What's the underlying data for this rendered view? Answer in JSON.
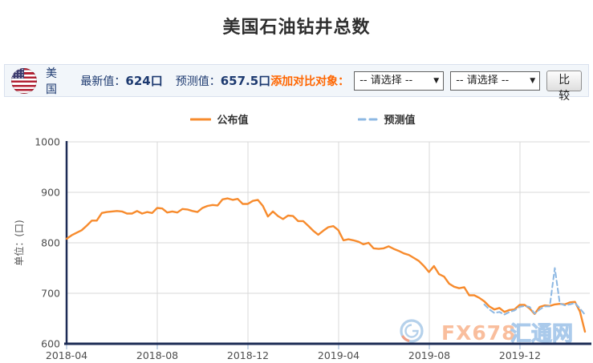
{
  "page": {
    "title": "美国石油钻井总数"
  },
  "toolbar": {
    "flag_icon": "us-flag",
    "country": "美国",
    "latest_label": "最新值：",
    "latest_value": "624口",
    "forecast_label": "预测值：",
    "forecast_value": "657.5口",
    "compare_label": "添加对比对象：",
    "select1_value": "-- 请选择 --",
    "select2_value": "-- 请选择 --",
    "compare_button": "比较"
  },
  "legend": [
    {
      "label": "公布值",
      "color": "#f78b2d",
      "style": "solid"
    },
    {
      "label": "预测值",
      "color": "#8db8e3",
      "style": "dashed"
    }
  ],
  "watermark": {
    "logo_icon": "fx678-swirl-logo",
    "text1": "FX678",
    "text2": "汇通网"
  },
  "colors": {
    "published": "#f78b2d",
    "forecast": "#8db8e3",
    "axis": "#1c2b55",
    "grid": "#d9d9d9",
    "tick": "#aec4dd",
    "tick_label": "#4d4d4d",
    "accent_orange": "#ff6600",
    "navy_text": "#1d3a70",
    "toolbar_bg": "#f2f6fa"
  },
  "chart_data": {
    "type": "line",
    "title": "美国石油钻井总数",
    "xlabel": "",
    "ylabel": "单位：(口)",
    "ylim": [
      600,
      1000
    ],
    "yticks": [
      600,
      700,
      800,
      900,
      1000
    ],
    "x_tick_labels": [
      "2018-04",
      "2018-08",
      "2018-12",
      "2019-04",
      "2019-08",
      "2019-12"
    ],
    "grid": true,
    "legend_position": "top",
    "series": [
      {
        "name": "公布值",
        "color": "#f78b2d",
        "style": "solid",
        "start_index": 0,
        "values": [
          808,
          815,
          820,
          825,
          834,
          844,
          844,
          859,
          861,
          862,
          863,
          862,
          858,
          858,
          863,
          858,
          861,
          859,
          869,
          868,
          860,
          862,
          860,
          867,
          866,
          863,
          861,
          869,
          873,
          875,
          874,
          886,
          888,
          885,
          887,
          877,
          877,
          883,
          885,
          873,
          852,
          862,
          853,
          847,
          854,
          853,
          843,
          843,
          834,
          824,
          816,
          824,
          831,
          833,
          825,
          805,
          807,
          805,
          802,
          797,
          800,
          789,
          788,
          789,
          793,
          788,
          784,
          779,
          776,
          770,
          764,
          754,
          742,
          754,
          738,
          733,
          719,
          713,
          710,
          712,
          696,
          696,
          691,
          684,
          674,
          668,
          671,
          663,
          667,
          668,
          677,
          677,
          670,
          659,
          673,
          676,
          675,
          678,
          679,
          678,
          682,
          683,
          664,
          624
        ]
      },
      {
        "name": "预测值",
        "color": "#8db8e3",
        "style": "dashed",
        "start_index": 83,
        "values": [
          678,
          668,
          661,
          663,
          658,
          663,
          666,
          673,
          675,
          673,
          660,
          668,
          674,
          674,
          750,
          680,
          676,
          678,
          681,
          670,
          657.5
        ]
      }
    ]
  }
}
